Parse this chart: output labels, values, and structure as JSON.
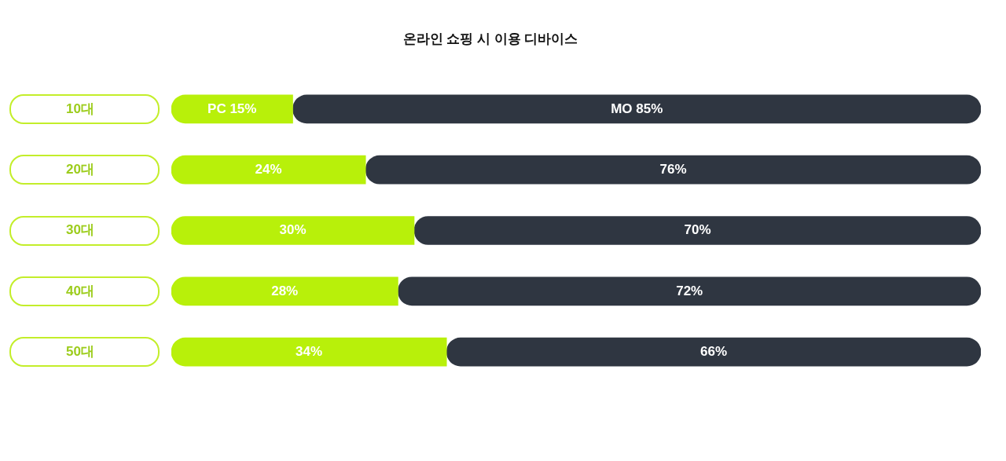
{
  "chart_data": {
    "type": "bar",
    "orientation": "horizontal",
    "stacked": true,
    "title": "온라인 쇼핑 시 이용 디바이스",
    "categories": [
      "10대",
      "20대",
      "30대",
      "40대",
      "50대"
    ],
    "xlim": [
      0,
      100
    ],
    "tick_labels": "y",
    "series": [
      {
        "color": "#b8f00a",
        "values": [
          15,
          24,
          30,
          28,
          34
        ],
        "value_labels": [
          "PC 15%",
          "24%",
          "30%",
          "28%",
          "34%"
        ]
      },
      {
        "color": "#2f3641",
        "values": [
          85,
          76,
          70,
          72,
          66
        ],
        "value_labels": [
          "MO 85%",
          "76%",
          "70%",
          "72%",
          "66%"
        ]
      }
    ]
  }
}
